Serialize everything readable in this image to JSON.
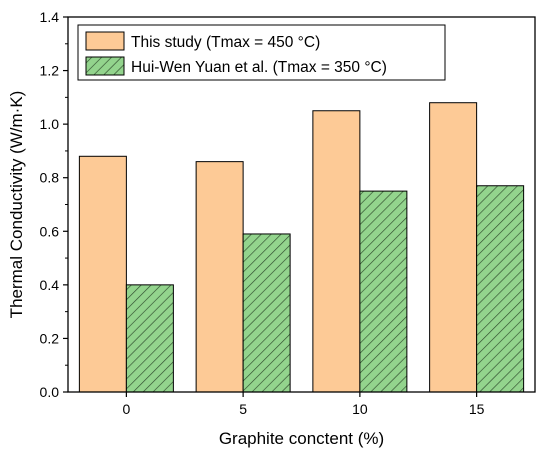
{
  "chart_data": {
    "type": "bar",
    "categories": [
      "0",
      "5",
      "10",
      "15"
    ],
    "series": [
      {
        "name": "This study (Tmax = 450 °C)",
        "values": [
          0.88,
          0.86,
          1.05,
          1.08
        ],
        "fill": "#fdca96",
        "pattern": "solid"
      },
      {
        "name": "Hui-Wen Yuan et al. (Tmax = 350 °C)",
        "values": [
          0.4,
          0.59,
          0.75,
          0.77
        ],
        "fill": "#93d48d",
        "pattern": "diagonal-hatch"
      }
    ],
    "xlabel": "Graphite conctent (%)",
    "ylabel": "Thermal Conductivity (W/m·K)",
    "ylim": [
      0,
      1.4
    ],
    "yticks": [
      0.0,
      0.2,
      0.4,
      0.6,
      0.8,
      1.0,
      1.2,
      1.4
    ],
    "grid": false,
    "legend_position": "top-left"
  }
}
